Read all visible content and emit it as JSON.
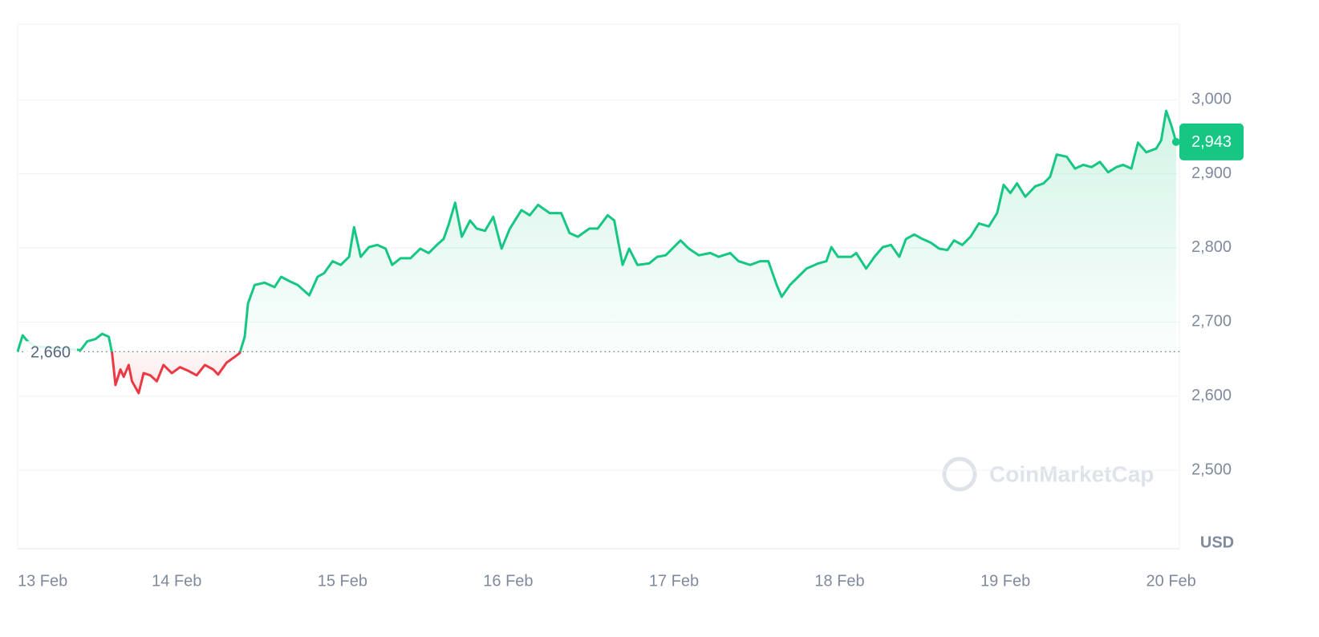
{
  "chart_data": {
    "type": "line",
    "x": [
      13.04,
      13.07,
      13.1,
      13.15,
      13.42,
      13.46,
      13.51,
      13.55,
      13.59,
      13.61,
      13.63,
      13.66,
      13.68,
      13.71,
      13.73,
      13.77,
      13.8,
      13.84,
      13.88,
      13.92,
      13.97,
      14.02,
      14.07,
      14.12,
      14.17,
      14.22,
      14.25,
      14.3,
      14.35,
      14.38,
      14.41,
      14.43,
      14.47,
      14.53,
      14.59,
      14.63,
      14.68,
      14.73,
      14.8,
      14.85,
      14.89,
      14.94,
      14.99,
      15.04,
      15.07,
      15.11,
      15.16,
      15.21,
      15.26,
      15.3,
      15.35,
      15.41,
      15.47,
      15.52,
      15.57,
      15.61,
      15.64,
      15.68,
      15.72,
      15.77,
      15.81,
      15.86,
      15.91,
      15.96,
      16.01,
      16.08,
      16.13,
      16.18,
      16.25,
      16.32,
      16.37,
      16.42,
      16.49,
      16.54,
      16.6,
      16.64,
      16.69,
      16.73,
      16.78,
      16.85,
      16.9,
      16.95,
      17.04,
      17.09,
      17.15,
      17.22,
      17.27,
      17.34,
      17.39,
      17.46,
      17.52,
      17.57,
      17.62,
      17.65,
      17.7,
      17.75,
      17.8,
      17.87,
      17.92,
      17.95,
      17.99,
      18.07,
      18.1,
      18.16,
      18.21,
      18.26,
      18.31,
      18.36,
      18.4,
      18.45,
      18.5,
      18.55,
      18.6,
      18.65,
      18.69,
      18.74,
      18.79,
      18.84,
      18.9,
      18.95,
      18.99,
      19.03,
      19.07,
      19.12,
      19.18,
      19.23,
      19.27,
      19.31,
      19.37,
      19.42,
      19.47,
      19.52,
      19.57,
      19.62,
      19.67,
      19.71,
      19.76,
      19.8,
      19.85,
      19.91,
      19.94,
      19.97,
      20.0,
      20.03
    ],
    "values": [
      2660,
      2682,
      2674,
      2667,
      2662,
      2674,
      2677,
      2684,
      2680,
      2658,
      2615,
      2636,
      2626,
      2642,
      2620,
      2604,
      2631,
      2628,
      2620,
      2642,
      2631,
      2639,
      2634,
      2628,
      2642,
      2636,
      2629,
      2645,
      2653,
      2658,
      2680,
      2725,
      2750,
      2753,
      2747,
      2761,
      2755,
      2750,
      2736,
      2761,
      2766,
      2782,
      2777,
      2788,
      2828,
      2788,
      2801,
      2804,
      2799,
      2777,
      2786,
      2786,
      2799,
      2793,
      2804,
      2812,
      2831,
      2861,
      2815,
      2837,
      2826,
      2823,
      2842,
      2799,
      2826,
      2851,
      2844,
      2858,
      2847,
      2847,
      2820,
      2815,
      2826,
      2826,
      2844,
      2837,
      2777,
      2799,
      2777,
      2779,
      2788,
      2790,
      2810,
      2799,
      2790,
      2793,
      2788,
      2793,
      2782,
      2777,
      2782,
      2782,
      2750,
      2734,
      2750,
      2761,
      2772,
      2779,
      2782,
      2801,
      2788,
      2788,
      2793,
      2772,
      2788,
      2801,
      2804,
      2788,
      2812,
      2818,
      2812,
      2807,
      2799,
      2797,
      2810,
      2804,
      2815,
      2833,
      2829,
      2847,
      2885,
      2874,
      2887,
      2869,
      2883,
      2887,
      2896,
      2926,
      2923,
      2907,
      2912,
      2909,
      2916,
      2902,
      2909,
      2912,
      2907,
      2942,
      2929,
      2934,
      2945,
      2985,
      2966,
      2943
    ],
    "color": "#16c784",
    "negative_color": "#ea3943",
    "baseline": {
      "value": 2660,
      "label": "2,660"
    },
    "current_price": {
      "value": 2943,
      "label": "2,943"
    },
    "xlim": [
      13.04,
      20.05
    ],
    "xticks": [
      {
        "value": 13,
        "label": "13 Feb"
      },
      {
        "value": 14,
        "label": "14 Feb"
      },
      {
        "value": 15,
        "label": "15 Feb"
      },
      {
        "value": 16,
        "label": "16 Feb"
      },
      {
        "value": 17,
        "label": "17 Feb"
      },
      {
        "value": 18,
        "label": "18 Feb"
      },
      {
        "value": 19,
        "label": "19 Feb"
      },
      {
        "value": 20,
        "label": "20 Feb"
      }
    ],
    "ylim": [
      2394,
      3102
    ],
    "yticks": [
      {
        "value": 2500,
        "label": "2,500"
      },
      {
        "value": 2600,
        "label": "2,600"
      },
      {
        "value": 2700,
        "label": "2,700"
      },
      {
        "value": 2800,
        "label": "2,800"
      },
      {
        "value": 2900,
        "label": "2,900"
      },
      {
        "value": 3000,
        "label": "3,000"
      }
    ],
    "y_unit": "USD",
    "watermark": "CoinMarketCap",
    "grid": true
  }
}
